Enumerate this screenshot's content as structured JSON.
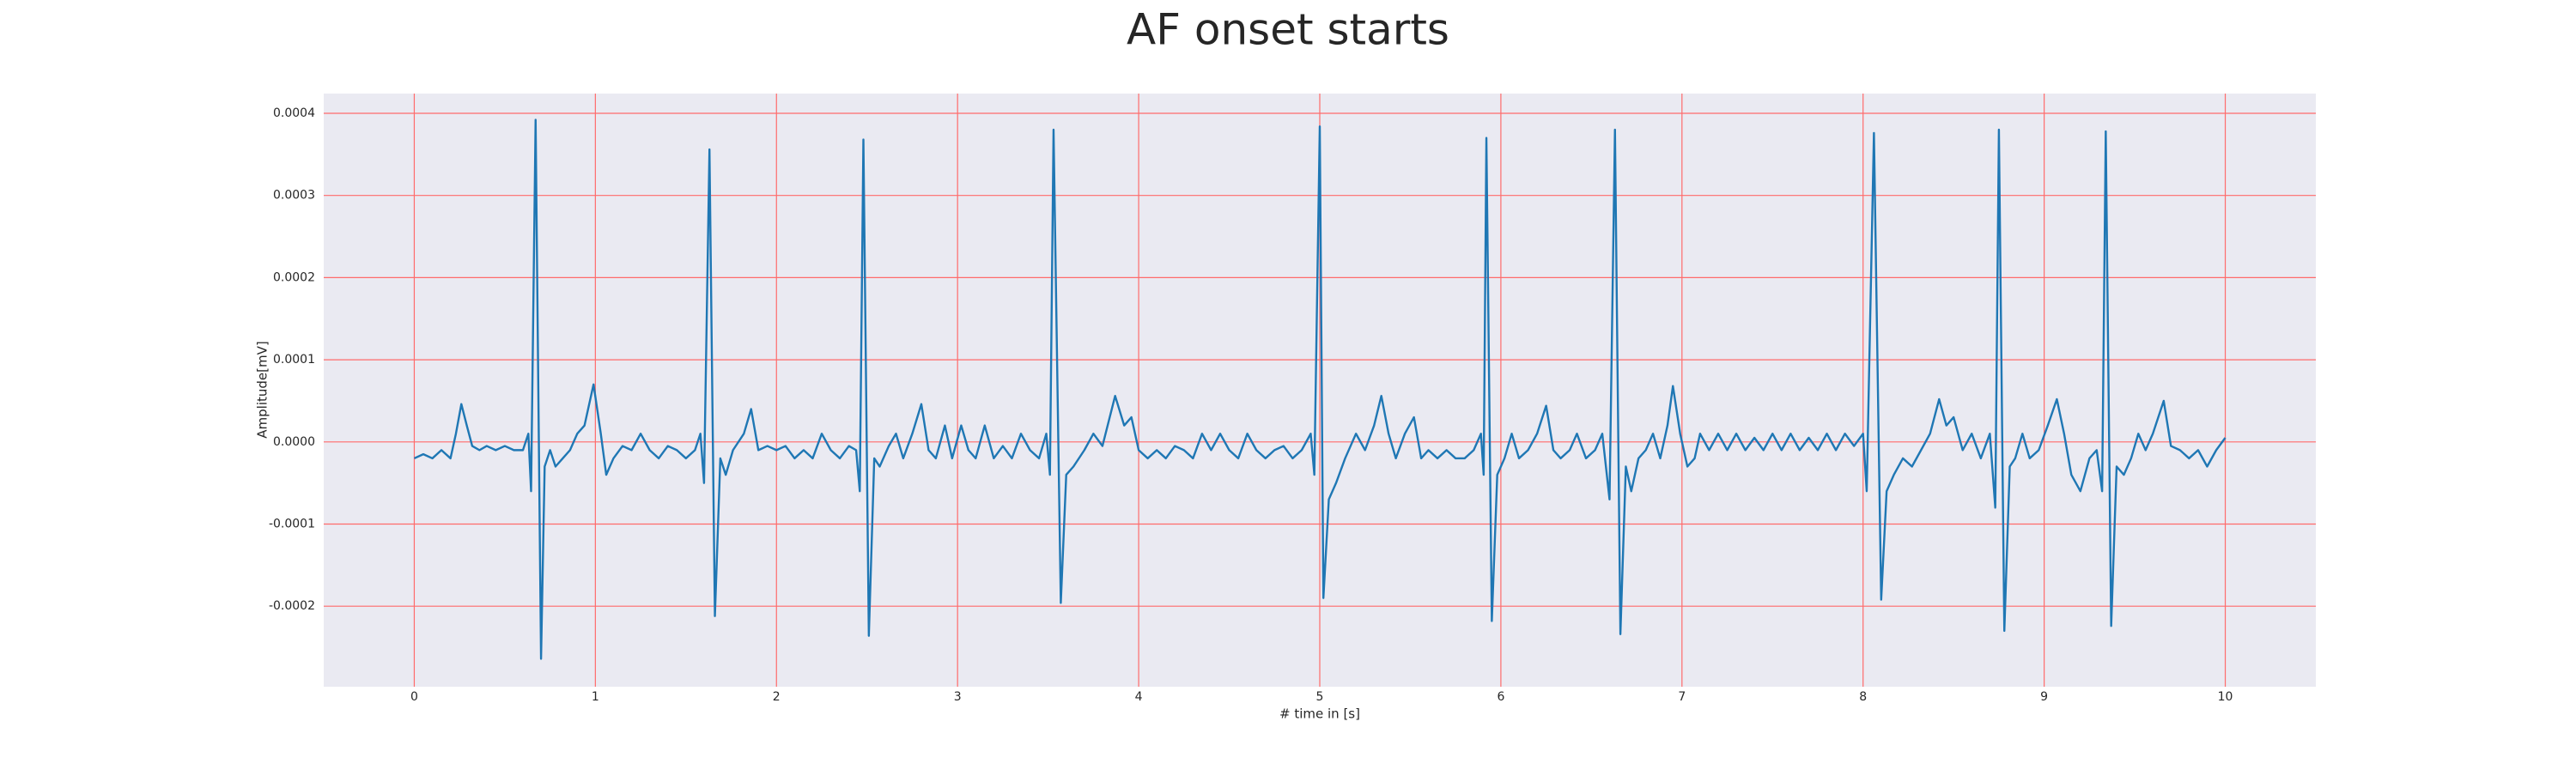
{
  "chart_data": {
    "type": "line",
    "title": "AF onset starts",
    "xlabel": "# time in [s]",
    "ylabel": "Amplitude[mV]",
    "color": "#1f77b4",
    "grid": true,
    "grid_color": "#ff6b6b",
    "background": "#eaeaf2",
    "xlim": [
      -0.5,
      10.5
    ],
    "ylim": [
      -0.000298,
      0.000424
    ],
    "xticks": [
      0,
      1,
      2,
      3,
      4,
      5,
      6,
      7,
      8,
      9,
      10
    ],
    "yticks": [
      -0.0002,
      -0.0001,
      {
        "value": 0,
        "label": "0.0000"
      },
      0.0001,
      0.0002,
      0.0003,
      0.0004
    ],
    "x": [
      0.0,
      0.05,
      0.1,
      0.15,
      0.2,
      0.23,
      0.26,
      0.29,
      0.32,
      0.36,
      0.4,
      0.45,
      0.5,
      0.55,
      0.6,
      0.63,
      0.645,
      0.67,
      0.7,
      0.72,
      0.75,
      0.78,
      0.82,
      0.86,
      0.9,
      0.94,
      0.99,
      1.03,
      1.06,
      1.1,
      1.15,
      1.2,
      1.25,
      1.3,
      1.35,
      1.4,
      1.45,
      1.5,
      1.55,
      1.58,
      1.6,
      1.63,
      1.66,
      1.69,
      1.72,
      1.76,
      1.82,
      1.86,
      1.9,
      1.95,
      2.0,
      2.05,
      2.1,
      2.15,
      2.2,
      2.25,
      2.3,
      2.35,
      2.4,
      2.44,
      2.46,
      2.48,
      2.51,
      2.54,
      2.57,
      2.62,
      2.66,
      2.7,
      2.75,
      2.8,
      2.84,
      2.88,
      2.93,
      2.97,
      3.02,
      3.06,
      3.1,
      3.15,
      3.2,
      3.25,
      3.3,
      3.35,
      3.4,
      3.45,
      3.49,
      3.51,
      3.53,
      3.57,
      3.6,
      3.64,
      3.7,
      3.75,
      3.8,
      3.87,
      3.92,
      3.96,
      4.0,
      4.05,
      4.1,
      4.15,
      4.2,
      4.25,
      4.3,
      4.35,
      4.4,
      4.45,
      4.5,
      4.55,
      4.6,
      4.65,
      4.7,
      4.75,
      4.8,
      4.85,
      4.9,
      4.95,
      4.97,
      5.0,
      5.02,
      5.05,
      5.09,
      5.14,
      5.2,
      5.25,
      5.3,
      5.34,
      5.38,
      5.42,
      5.47,
      5.52,
      5.56,
      5.6,
      5.65,
      5.7,
      5.75,
      5.8,
      5.85,
      5.89,
      5.905,
      5.92,
      5.95,
      5.98,
      6.02,
      6.06,
      6.1,
      6.15,
      6.2,
      6.25,
      6.29,
      6.33,
      6.38,
      6.42,
      6.47,
      6.52,
      6.56,
      6.6,
      6.63,
      6.66,
      6.69,
      6.72,
      6.76,
      6.8,
      6.84,
      6.88,
      6.92,
      6.95,
      6.99,
      7.03,
      7.07,
      7.1,
      7.15,
      7.2,
      7.25,
      7.3,
      7.35,
      7.4,
      7.45,
      7.5,
      7.55,
      7.6,
      7.65,
      7.7,
      7.75,
      7.8,
      7.85,
      7.9,
      7.95,
      8.0,
      8.02,
      8.06,
      8.1,
      8.13,
      8.17,
      8.22,
      8.27,
      8.32,
      8.37,
      8.42,
      8.46,
      8.5,
      8.55,
      8.6,
      8.65,
      8.7,
      8.73,
      8.75,
      8.78,
      8.81,
      8.84,
      8.88,
      8.92,
      8.97,
      9.02,
      9.07,
      9.11,
      9.15,
      9.2,
      9.25,
      9.29,
      9.32,
      9.34,
      9.37,
      9.4,
      9.44,
      9.48,
      9.52,
      9.56,
      9.6,
      9.66,
      9.7,
      9.75,
      9.8,
      9.85,
      9.9,
      9.95,
      10.0
    ],
    "values": [
      -2e-05,
      -1.5e-05,
      -2e-05,
      -1e-05,
      -2e-05,
      1e-05,
      4.6e-05,
      2e-05,
      -5e-06,
      -1e-05,
      -5e-06,
      -1e-05,
      -5e-06,
      -1e-05,
      -1e-05,
      1e-05,
      -6e-05,
      0.000392,
      -0.000264,
      -3e-05,
      -1e-05,
      -3e-05,
      -2e-05,
      -1e-05,
      1e-05,
      2e-05,
      7e-05,
      1e-05,
      -4e-05,
      -2e-05,
      -5e-06,
      -1e-05,
      1e-05,
      -1e-05,
      -2e-05,
      -5e-06,
      -1e-05,
      -2e-05,
      -1e-05,
      1e-05,
      -5e-05,
      0.000356,
      -0.000212,
      -2e-05,
      -4e-05,
      -1e-05,
      1e-05,
      4e-05,
      -1e-05,
      -5e-06,
      -1e-05,
      -5e-06,
      -2e-05,
      -1e-05,
      -2e-05,
      1e-05,
      -1e-05,
      -2e-05,
      -5e-06,
      -1e-05,
      -6e-05,
      0.000368,
      -0.000236,
      -2e-05,
      -3e-05,
      -5e-06,
      1e-05,
      -2e-05,
      1e-05,
      4.6e-05,
      -1e-05,
      -2e-05,
      2e-05,
      -2e-05,
      2e-05,
      -1e-05,
      -2e-05,
      2e-05,
      -2e-05,
      -5e-06,
      -2e-05,
      1e-05,
      -1e-05,
      -2e-05,
      1e-05,
      -4e-05,
      0.00038,
      -0.000196,
      -4e-05,
      -3e-05,
      -1e-05,
      1e-05,
      -5e-06,
      5.6e-05,
      2e-05,
      3e-05,
      -1e-05,
      -2e-05,
      -1e-05,
      -2e-05,
      -5e-06,
      -1e-05,
      -2e-05,
      1e-05,
      -1e-05,
      1e-05,
      -1e-05,
      -2e-05,
      1e-05,
      -1e-05,
      -2e-05,
      -1e-05,
      -5e-06,
      -2e-05,
      -1e-05,
      1e-05,
      -4e-05,
      0.000384,
      -0.00019,
      -7e-05,
      -5e-05,
      -2e-05,
      1e-05,
      -1e-05,
      2e-05,
      5.6e-05,
      1e-05,
      -2e-05,
      1e-05,
      3e-05,
      -2e-05,
      -1e-05,
      -2e-05,
      -1e-05,
      -2e-05,
      -2e-05,
      -1e-05,
      1e-05,
      -4e-05,
      0.00037,
      -0.000218,
      -4e-05,
      -2e-05,
      1e-05,
      -2e-05,
      -1e-05,
      1e-05,
      4.4e-05,
      -1e-05,
      -2e-05,
      -1e-05,
      1e-05,
      -2e-05,
      -1e-05,
      1e-05,
      -7e-05,
      0.00038,
      -0.000234,
      -3e-05,
      -6e-05,
      -2e-05,
      -1e-05,
      1e-05,
      -2e-05,
      2e-05,
      6.8e-05,
      1e-05,
      -3e-05,
      -2e-05,
      1e-05,
      -1e-05,
      1e-05,
      -1e-05,
      1e-05,
      -1e-05,
      5e-06,
      -1e-05,
      1e-05,
      -1e-05,
      1e-05,
      -1e-05,
      5e-06,
      -1e-05,
      1e-05,
      -1e-05,
      1e-05,
      -5e-06,
      1e-05,
      -6e-05,
      0.000376,
      -0.000192,
      -6e-05,
      -4e-05,
      -2e-05,
      -3e-05,
      -1e-05,
      1e-05,
      5.2e-05,
      2e-05,
      3e-05,
      -1e-05,
      1e-05,
      -2e-05,
      1e-05,
      -8e-05,
      0.00038,
      -0.00023,
      -3e-05,
      -2e-05,
      1e-05,
      -2e-05,
      -1e-05,
      2e-05,
      5.2e-05,
      1e-05,
      -4e-05,
      -6e-05,
      -2e-05,
      -1e-05,
      -6e-05,
      0.000378,
      -0.000224,
      -3e-05,
      -4e-05,
      -2e-05,
      1e-05,
      -1e-05,
      1e-05,
      5e-05,
      -5e-06,
      -1e-05,
      -2e-05,
      -1e-05,
      -3e-05,
      -1e-05,
      5e-06
    ]
  }
}
